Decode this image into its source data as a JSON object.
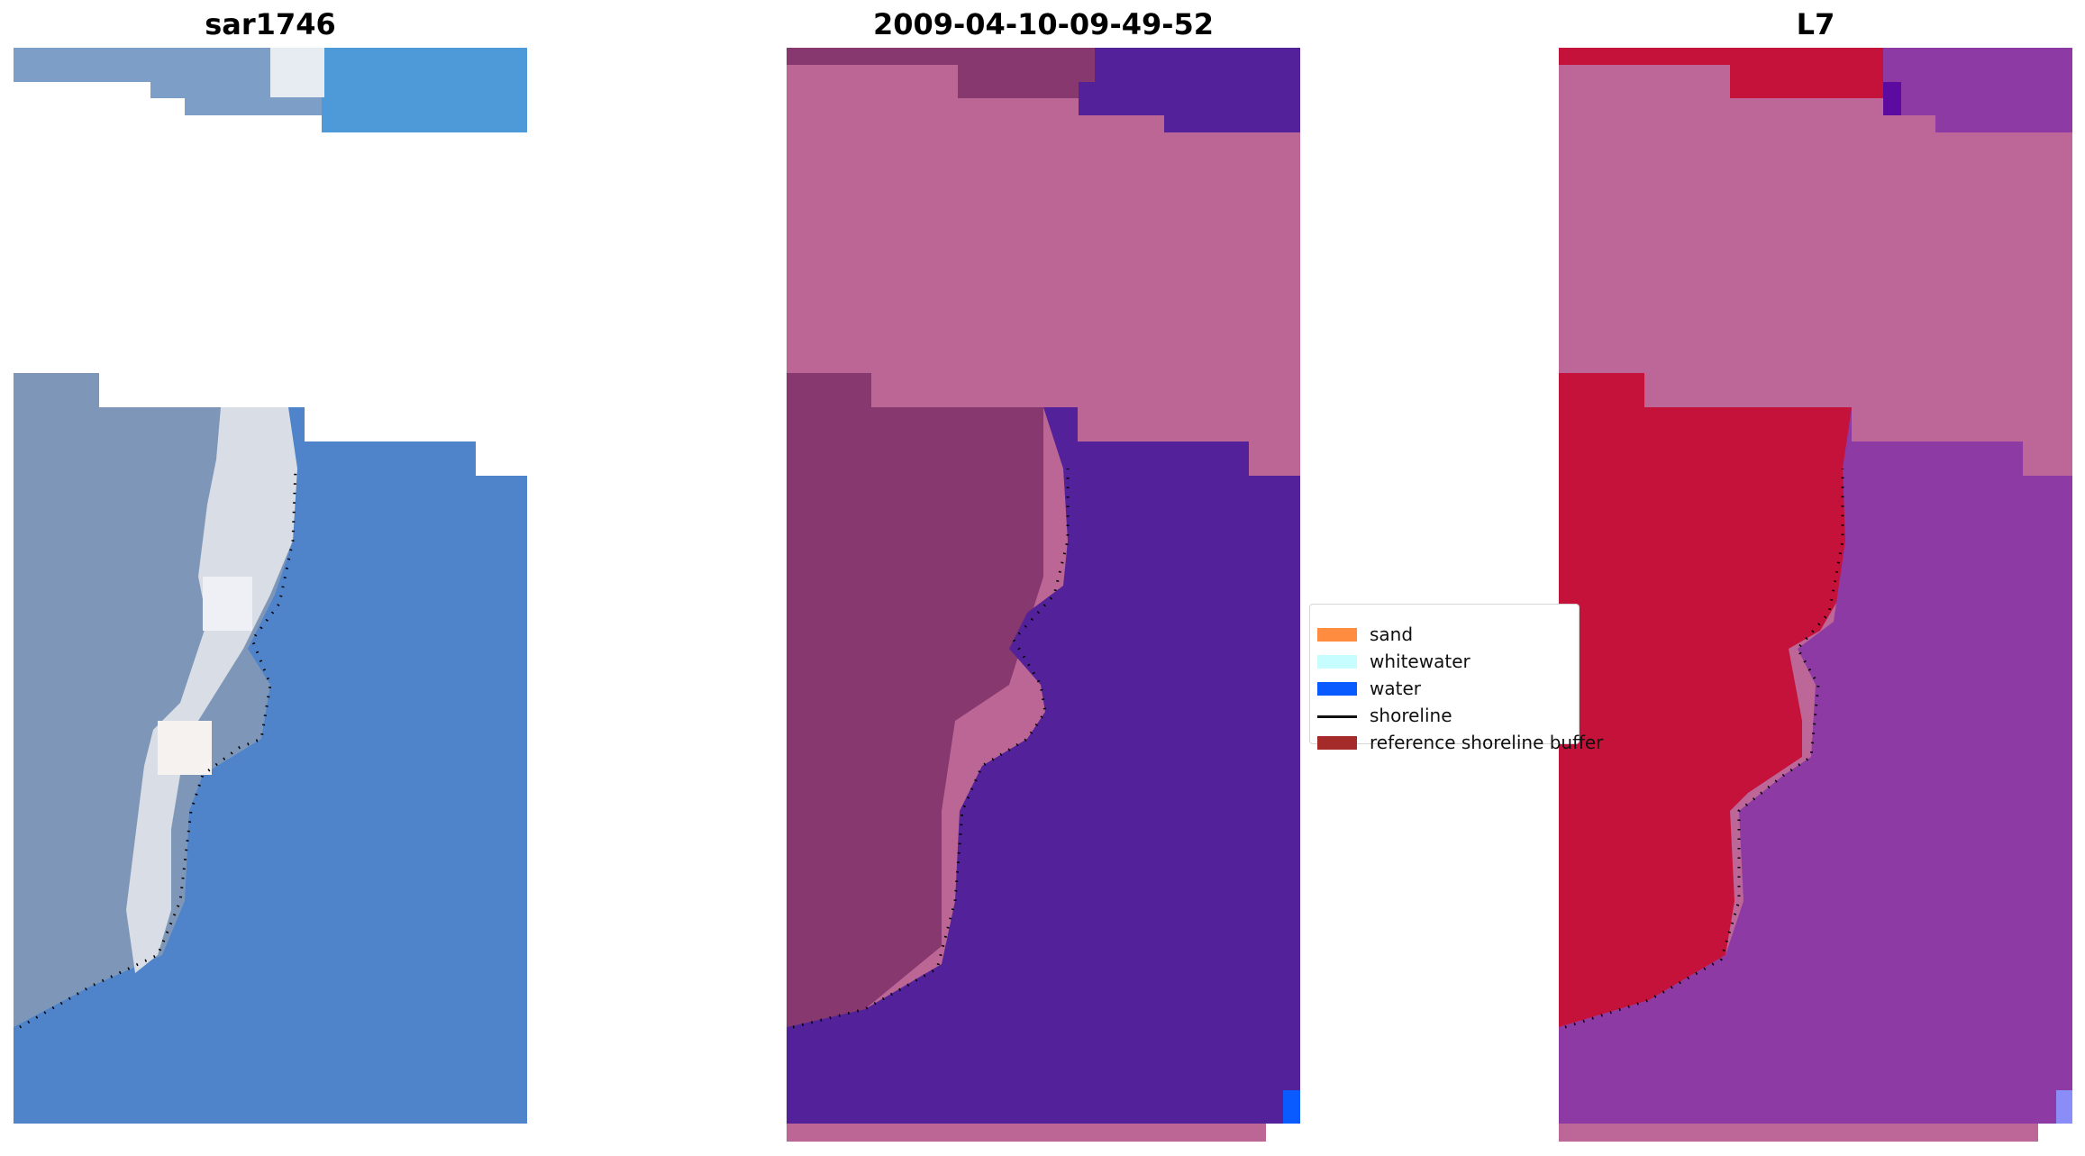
{
  "panels": [
    {
      "title": "sar1746"
    },
    {
      "title": "2009-04-10-09-49-52"
    },
    {
      "title": "L7"
    }
  ],
  "legend": {
    "items": [
      {
        "label": "sand",
        "color": "#ff8c3f",
        "kind": "patch"
      },
      {
        "label": "whitewater",
        "color": "#c7fdfe",
        "kind": "patch"
      },
      {
        "label": "water",
        "color": "#0a5bff",
        "kind": "patch"
      },
      {
        "label": "shoreline",
        "color": "#000000",
        "kind": "line"
      },
      {
        "label": "reference shoreline buffer",
        "color": "#a52a2a",
        "kind": "patch"
      }
    ]
  },
  "colors": {
    "rgb_land": "#7d98b9",
    "rgb_water": "#4f86cc",
    "rgb_whitewater": "#eef2f6",
    "class_land": "#bb6694",
    "class_land_dark": "#86386f",
    "class_water": "#53229a",
    "mndwi_land": "#bd6698",
    "mndwi_sand": "#c4123a",
    "mndwi_water": "#8d3aa5",
    "shoreline_dots": "#000000"
  }
}
